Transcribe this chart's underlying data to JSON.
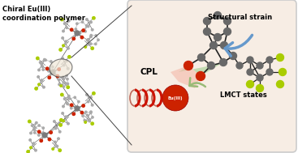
{
  "bg_color": "#ffffff",
  "right_panel_bg": "#f7ede4",
  "title_text": "Chiral Eu(III)\ncoordination polymer",
  "label_structural_strain": "Structural strain",
  "label_lmct": "LMCT states",
  "label_cpl": "CPL",
  "label_eu": "Eu(III)",
  "atom_gray": "#686868",
  "atom_dark": "#404040",
  "atom_red": "#cc2200",
  "atom_yg": "#aacc00",
  "bond_color": "#222222",
  "eu_ball_color": "#cc2200",
  "cpl_coil_color": "#cc1100",
  "arrow_blue": "#6699cc",
  "arrow_green": "#99bb88",
  "green_patch_color": "#99cc88",
  "pink_patch_color": "#f4b8a8"
}
